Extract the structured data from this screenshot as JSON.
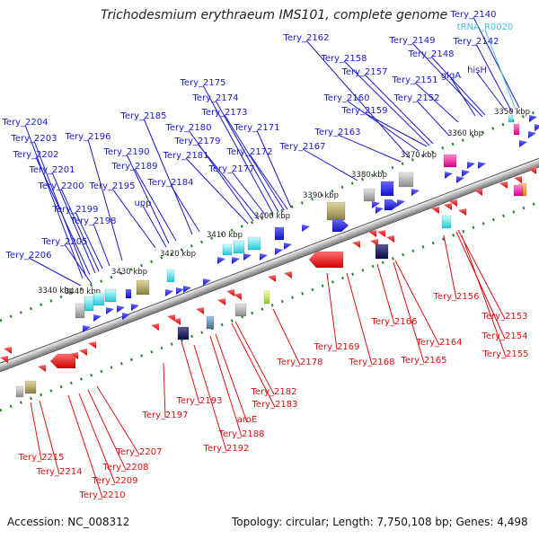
{
  "title": "Trichodesmium erythraeum IMS101, complete genome",
  "footer": {
    "accession": "Accession: NC_008312",
    "stats": "Topology: circular; Length: 7,750,108 bp; Genes: 4,498"
  },
  "colors": {
    "forward": "#1a1acc",
    "reverse": "#dd1111",
    "rna": "#44bbdd",
    "backbone": "#888888",
    "tick": "#228822"
  },
  "ticks": [
    "3340 kbp",
    "3350 kbp",
    "3360 kbp",
    "3370 kbp",
    "3380 kbp",
    "3390 kbp",
    "3400 kbp",
    "3410 kbp",
    "3420 kbp",
    "3430 kbp",
    "3440 kbp"
  ],
  "labels_forward": [
    "Tery_2140",
    "tRNA_R0020",
    "Tery_2142",
    "Tery_2148",
    "Tery_2149",
    "hisH",
    "glgA",
    "Tery_2151",
    "Tery_2152",
    "Tery_2157",
    "Tery_2158",
    "Tery_2159",
    "Tery_2160",
    "Tery_2162",
    "Tery_2163",
    "Tery_2167",
    "Tery_2171",
    "Tery_2172",
    "Tery_2173",
    "Tery_2174",
    "Tery_2175",
    "Tery_2177",
    "Tery_2179",
    "Tery_2180",
    "Tery_2181",
    "Tery_2184",
    "Tery_2185",
    "Tery_2189",
    "Tery_2190",
    "upp",
    "Tery_2195",
    "Tery_2196",
    "Tery_2198",
    "Tery_2199",
    "Tery_2200",
    "Tery_2201",
    "Tery_2202",
    "Tery_2203",
    "Tery_2204",
    "Tery_2205",
    "Tery_2206"
  ],
  "labels_reverse": [
    "Tery_2153",
    "Tery_2154",
    "Tery_2155",
    "Tery_2156",
    "Tery_2164",
    "Tery_2165",
    "Tery_2166",
    "Tery_2168",
    "Tery_2169",
    "Tery_2178",
    "Tery_2182",
    "Tery_2183",
    "aroE",
    "Tery_2188",
    "Tery_2192",
    "Tery_2193",
    "Tery_2197",
    "Tery_2207",
    "Tery_2208",
    "Tery_2209",
    "Tery_2210",
    "Tery_2214",
    "Tery_2215"
  ]
}
